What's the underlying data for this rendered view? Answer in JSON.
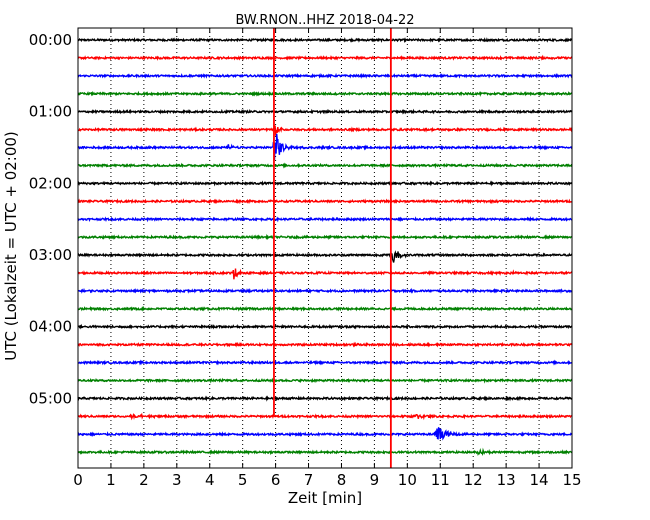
{
  "chart_data": {
    "type": "line",
    "title": "BW.RNON..HHZ 2018-04-22",
    "xlabel": "Zeit  [min]",
    "ylabel": "UTC (Lokalzeit = UTC + 02:00)",
    "xlim": [
      0,
      15
    ],
    "x_ticks": [
      "0",
      "1",
      "2",
      "3",
      "4",
      "5",
      "6",
      "7",
      "8",
      "9",
      "10",
      "11",
      "12",
      "13",
      "14",
      "15"
    ],
    "y_tick_labels": [
      "00:00",
      "01:00",
      "02:00",
      "03:00",
      "04:00",
      "05:00"
    ],
    "grid": "vertical dotted",
    "colors": [
      "#000000",
      "#ff0000",
      "#0000ff",
      "#008000"
    ],
    "trace_count": 24,
    "trace_interval_min": 15,
    "noise_amplitude": 0.05,
    "events": [
      {
        "trace": 6,
        "start_min": 4.5,
        "end_min": 4.9,
        "peak": 0.35
      },
      {
        "trace": 6,
        "start_min": 5.9,
        "end_min": 6.5,
        "peak": 1.9
      },
      {
        "trace": 5,
        "start_min": 5.95,
        "end_min": 6.3,
        "peak": 0.8
      },
      {
        "trace": 12,
        "start_min": 9.5,
        "end_min": 10.0,
        "peak": 1.2
      },
      {
        "trace": 13,
        "start_min": 4.7,
        "end_min": 5.0,
        "peak": 1.0
      },
      {
        "trace": 21,
        "start_min": 1.4,
        "end_min": 3.2,
        "peak": 0.18
      },
      {
        "trace": 21,
        "start_min": 10.2,
        "end_min": 10.9,
        "peak": 0.35
      },
      {
        "trace": 22,
        "start_min": 10.8,
        "end_min": 11.6,
        "peak": 1.0
      },
      {
        "trace": 23,
        "start_min": 12.1,
        "end_min": 12.6,
        "peak": 0.3
      },
      {
        "trace": 13,
        "start_min": 13.2,
        "end_min": 13.4,
        "peak": 0.15
      },
      {
        "trace": 1,
        "start_min": 14.1,
        "end_min": 14.3,
        "peak": 0.15
      }
    ],
    "spikes": [
      {
        "x_min": 5.95,
        "from_trace": -1,
        "to_trace": 21,
        "color": "#ff0000"
      },
      {
        "x_min": 9.5,
        "from_trace": -1,
        "to_trace": 24,
        "color": "#ff0000"
      }
    ]
  }
}
